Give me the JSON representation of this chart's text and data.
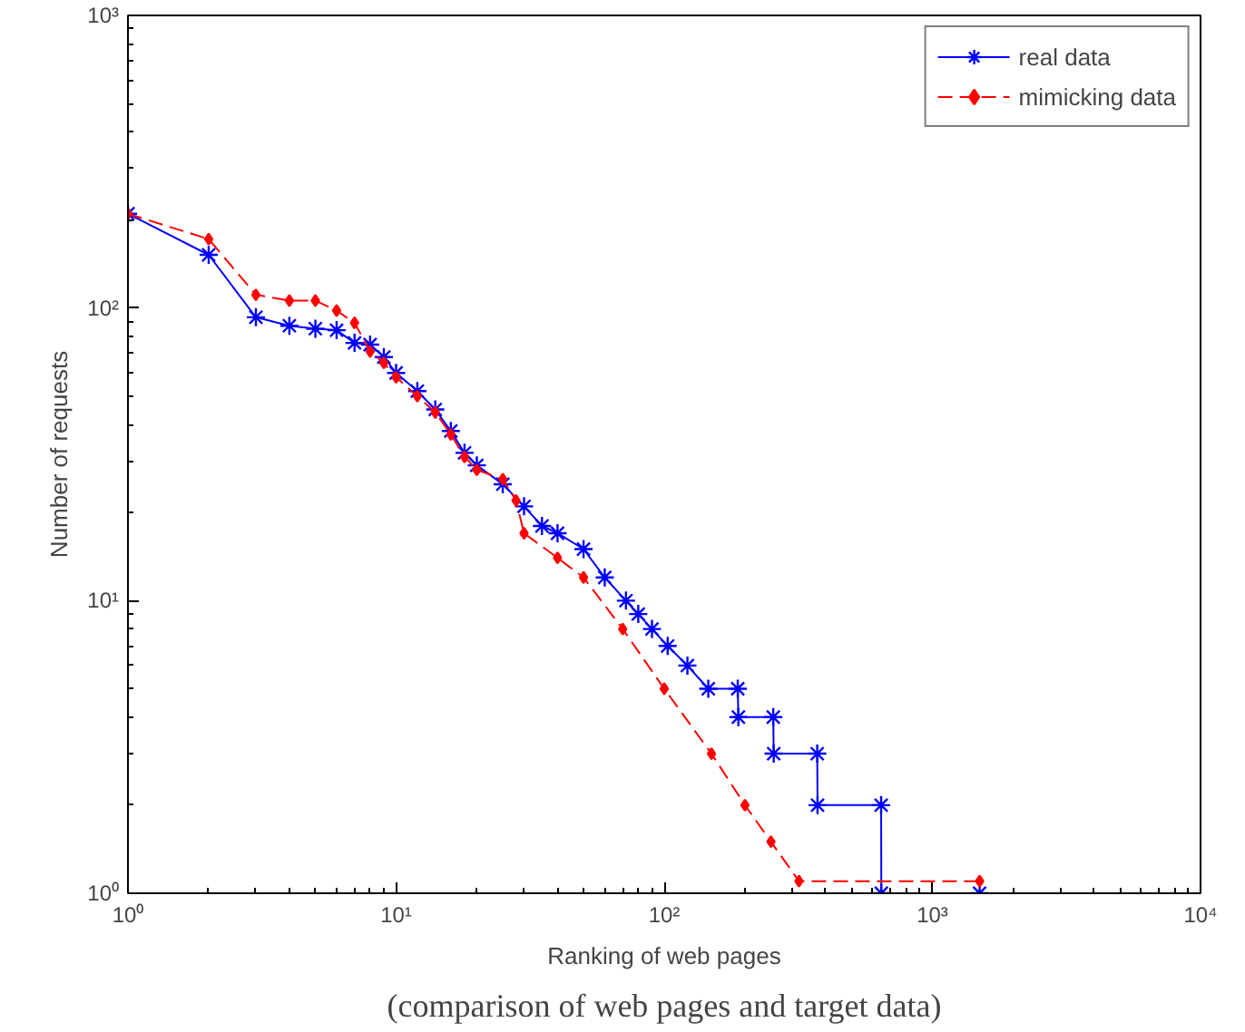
{
  "chart_data": {
    "type": "line",
    "log": "xy",
    "xlabel": "Ranking of web pages",
    "ylabel": "Number of requests",
    "annotations": [
      "(comparison of web pages and target data)"
    ],
    "xlim": [
      1,
      10000
    ],
    "ylim": [
      1,
      1000
    ],
    "xticks": [
      {
        "value": 1,
        "label": "10⁰"
      },
      {
        "value": 10,
        "label": "10¹"
      },
      {
        "value": 100,
        "label": "10²"
      },
      {
        "value": 1000,
        "label": "10³"
      },
      {
        "value": 10000,
        "label": "10⁴"
      }
    ],
    "yticks": [
      {
        "value": 1,
        "label": "10⁰"
      },
      {
        "value": 10,
        "label": "10¹"
      },
      {
        "value": 100,
        "label": "10²"
      },
      {
        "value": 1000,
        "label": "10³"
      }
    ],
    "grid": false,
    "legend": "top right",
    "series": [
      {
        "name": "real data",
        "color": "#0000ff",
        "marker": "cross",
        "line_style": "solid",
        "x": [
          1,
          2,
          3,
          4,
          5,
          6,
          7,
          8,
          9,
          10,
          12,
          14,
          16,
          18,
          20,
          25,
          30,
          35,
          40,
          50,
          60,
          72,
          80,
          90,
          103,
          122,
          146,
          188,
          189,
          255,
          256,
          372,
          373,
          644,
          645,
          1500
        ],
        "values": [
          210,
          152,
          93,
          87,
          85,
          84,
          76,
          75,
          68,
          60,
          52,
          45,
          38,
          32,
          29,
          25,
          21,
          18,
          17,
          15,
          12,
          10,
          9,
          8,
          7,
          6,
          5,
          5,
          4,
          4,
          3,
          3,
          2,
          2,
          1,
          1
        ]
      },
      {
        "name": "mimicking data",
        "color": "#ff0000",
        "marker": "diamond",
        "line_style": "dashed",
        "x": [
          1,
          2,
          3,
          4,
          5,
          6,
          7,
          8,
          9,
          10,
          12,
          14,
          16,
          18,
          20,
          25,
          28,
          30,
          40,
          50,
          70,
          100,
          150,
          200,
          250,
          318,
          1500
        ],
        "values": [
          210,
          172,
          111,
          106,
          106,
          98,
          89,
          71,
          65,
          58,
          50,
          44,
          37,
          31,
          28,
          26,
          22,
          17,
          14,
          12,
          8,
          5,
          3,
          2,
          1.5,
          1.1,
          1.1
        ]
      }
    ]
  }
}
